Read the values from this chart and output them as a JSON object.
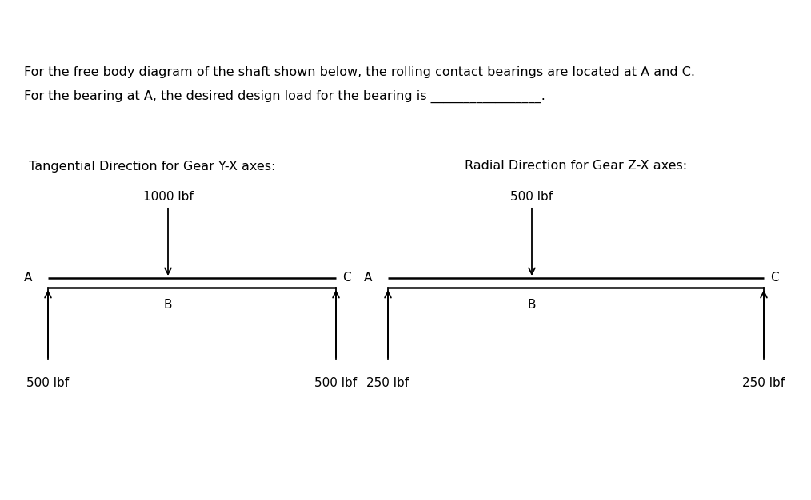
{
  "background_color": "#ffffff",
  "text_color": "#000000",
  "intro_line1": "For the free body diagram of the shaft shown below, the rolling contact bearings are located at A and C.",
  "intro_line2": "For the bearing at A, the desired design load for the bearing is _________________.",
  "left_title": "Tangential Direction for Gear Y-X axes:",
  "right_title": "Radial Direction for Gear Z-X axes:",
  "left_load_label": "1000 lbf",
  "right_load_label": "500 lbf",
  "left_reaction_A": "500 lbf",
  "left_reaction_C": "500 lbf",
  "right_reaction_A": "250 lbf",
  "right_reaction_C": "250 lbf",
  "font_size_intro": 11.5,
  "font_size_title": 11.5,
  "font_size_label": 11,
  "font_family": "DejaVu Sans",
  "fig_width": 10.14,
  "fig_height": 6.26,
  "dpi": 100
}
